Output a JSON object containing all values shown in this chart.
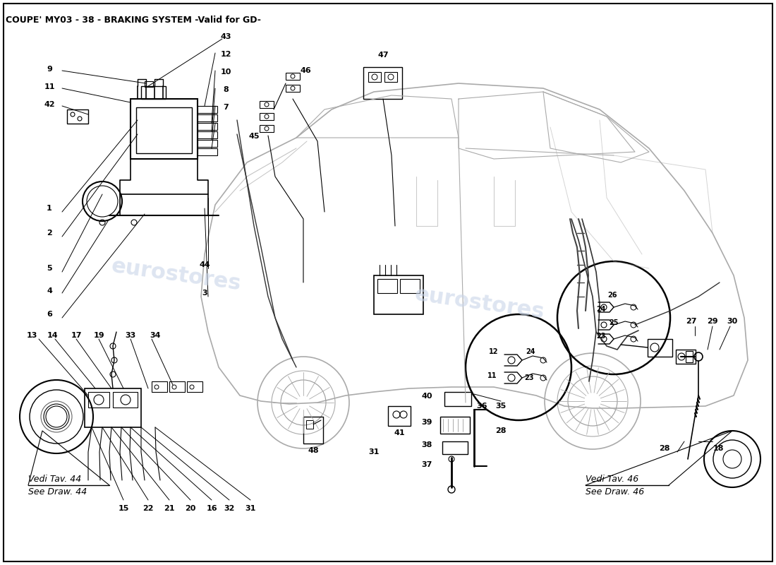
{
  "title": "COUPE' MY03 - 38 - BRAKING SYSTEM -Valid for GD-",
  "title_fontsize": 9,
  "title_fontweight": "bold",
  "bg_color": "#ffffff",
  "line_color": "#000000",
  "watermark_color": "#c8d4e8",
  "watermark_text": "eurostores",
  "fig_width": 11.0,
  "fig_height": 8.0,
  "dpi": 100,
  "vedi44": [
    "Vedi Tav. 44",
    "See Draw. 44"
  ],
  "vedi46": [
    "Vedi Tav. 46",
    "See Draw. 46"
  ]
}
